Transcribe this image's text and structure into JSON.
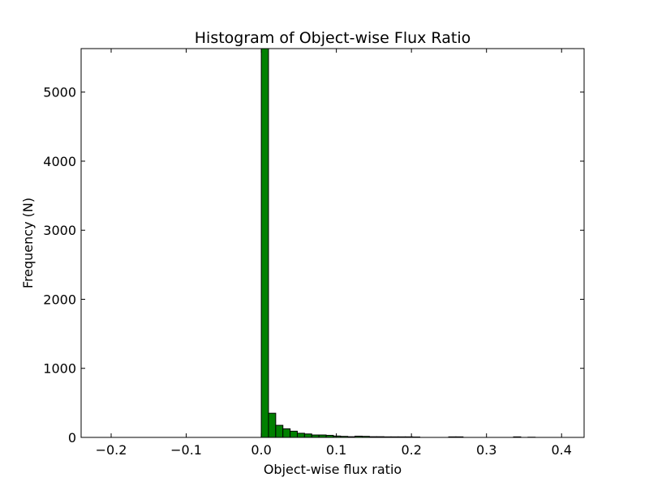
{
  "chart_data": {
    "type": "bar",
    "title": "Histogram of Object-wise Flux Ratio",
    "xlabel": "Object-wise flux ratio",
    "ylabel": "Frequency (N)",
    "xlim": [
      -0.24,
      0.43
    ],
    "ylim": [
      0,
      5630
    ],
    "bar_color": "#008000",
    "edge_color": "#000000",
    "grid": false,
    "legend": "none",
    "xticks": [
      -0.2,
      -0.1,
      0.0,
      0.1,
      0.2,
      0.3,
      0.4
    ],
    "xtick_labels": [
      "−0.2",
      "−0.1",
      "0.0",
      "0.1",
      "0.2",
      "0.3",
      "0.4"
    ],
    "yticks": [
      0,
      1000,
      2000,
      3000,
      4000,
      5000
    ],
    "ytick_labels": [
      "0",
      "1000",
      "2000",
      "3000",
      "4000",
      "5000"
    ],
    "bin_width": 0.0096,
    "bin_starts": [
      0.0,
      0.0096,
      0.0192,
      0.0288,
      0.0384,
      0.048,
      0.0576,
      0.0672,
      0.0768,
      0.0864,
      0.096,
      0.1056,
      0.1152,
      0.1248,
      0.1344,
      0.144,
      0.1536,
      0.1632,
      0.1728,
      0.1824,
      0.192,
      0.2016,
      0.2112,
      0.2208,
      0.2304,
      0.24,
      0.2496,
      0.2592,
      0.2688,
      0.2784,
      0.288,
      0.2976,
      0.3072,
      0.3168,
      0.3264,
      0.336,
      0.3456,
      0.3552
    ],
    "values": [
      5630,
      350,
      175,
      125,
      90,
      60,
      50,
      35,
      35,
      30,
      20,
      15,
      10,
      18,
      15,
      10,
      10,
      8,
      8,
      8,
      8,
      6,
      0,
      0,
      0,
      0,
      8,
      8,
      0,
      0,
      0,
      0,
      0,
      0,
      0,
      8,
      0,
      3
    ]
  }
}
